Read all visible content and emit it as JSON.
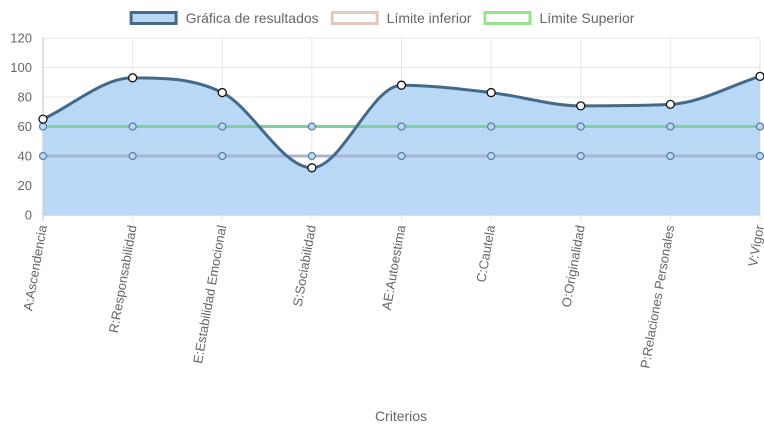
{
  "chart_data": {
    "type": "line",
    "categories": [
      "A:Ascendencia",
      "R:Responsabilidad",
      "E:Estabilidad Emocional",
      "S:Sociabilidad",
      "AE:Autoestima",
      "C:Cautela",
      "O:Originalidad",
      "P:Relaciones Personales",
      "V:Vigor"
    ],
    "series": [
      {
        "name": "Gráfica de resultados",
        "values": [
          65,
          93,
          83,
          32,
          88,
          83,
          74,
          75,
          94
        ],
        "color": "#456a89",
        "fill": "#b8d8f6",
        "filled": true,
        "smooth": true
      },
      {
        "name": "Límite inferior",
        "values": [
          40,
          40,
          40,
          40,
          40,
          40,
          40,
          40,
          40
        ],
        "color": "#a8b4d4",
        "legend_color": "#e6c9bd",
        "filled": false,
        "smooth": false
      },
      {
        "name": "Límite Superior",
        "values": [
          60,
          60,
          60,
          60,
          60,
          60,
          60,
          60,
          60
        ],
        "color": "#7fcfa0",
        "legend_color": "#99e28d",
        "filled": false,
        "smooth": false
      }
    ],
    "xlabel": "Criterios",
    "ylabel": "",
    "ylim": [
      0,
      120
    ],
    "yticks": [
      0,
      20,
      40,
      60,
      80,
      100,
      120
    ],
    "grid": true,
    "legend_position": "top"
  }
}
